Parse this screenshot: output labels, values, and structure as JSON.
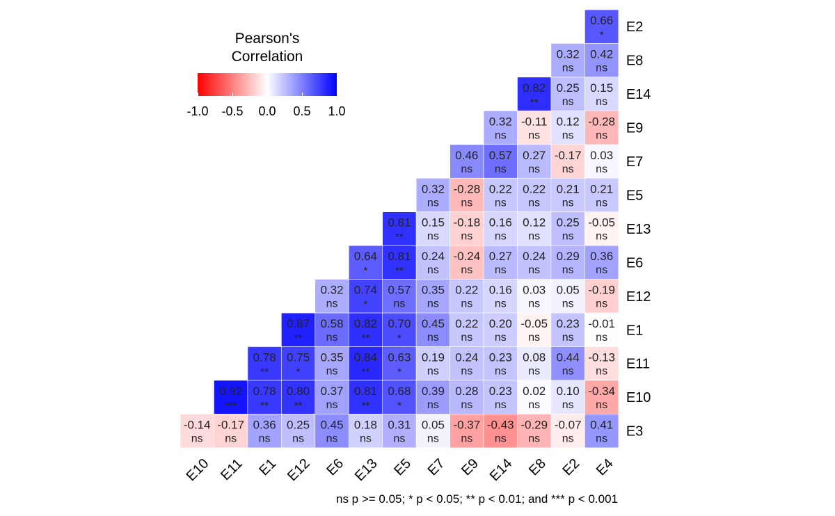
{
  "chart_data": {
    "type": "heatmap",
    "x_labels": [
      "E10",
      "E11",
      "E1",
      "E12",
      "E6",
      "E13",
      "E5",
      "E7",
      "E9",
      "E14",
      "E8",
      "E2",
      "E4"
    ],
    "y_labels": [
      "E2",
      "E8",
      "E14",
      "E9",
      "E7",
      "E5",
      "E13",
      "E6",
      "E12",
      "E1",
      "E11",
      "E10",
      "E3"
    ],
    "values": [
      [
        null,
        null,
        null,
        null,
        null,
        null,
        null,
        null,
        null,
        null,
        null,
        null,
        0.66
      ],
      [
        null,
        null,
        null,
        null,
        null,
        null,
        null,
        null,
        null,
        null,
        null,
        0.32,
        0.42
      ],
      [
        null,
        null,
        null,
        null,
        null,
        null,
        null,
        null,
        null,
        null,
        0.82,
        0.25,
        0.15
      ],
      [
        null,
        null,
        null,
        null,
        null,
        null,
        null,
        null,
        null,
        0.32,
        -0.11,
        0.12,
        -0.28
      ],
      [
        null,
        null,
        null,
        null,
        null,
        null,
        null,
        null,
        0.46,
        0.57,
        0.27,
        -0.17,
        0.03
      ],
      [
        null,
        null,
        null,
        null,
        null,
        null,
        null,
        0.32,
        -0.28,
        0.22,
        0.22,
        0.21,
        0.21
      ],
      [
        null,
        null,
        null,
        null,
        null,
        null,
        0.81,
        0.15,
        -0.18,
        0.16,
        0.12,
        0.25,
        -0.05
      ],
      [
        null,
        null,
        null,
        null,
        null,
        0.64,
        0.81,
        0.24,
        -0.24,
        0.27,
        0.24,
        0.29,
        0.36
      ],
      [
        null,
        null,
        null,
        null,
        0.32,
        0.74,
        0.57,
        0.35,
        0.22,
        0.16,
        0.03,
        0.05,
        -0.19
      ],
      [
        null,
        null,
        null,
        0.87,
        0.58,
        0.82,
        0.7,
        0.45,
        0.22,
        0.2,
        -0.05,
        0.23,
        -0.01
      ],
      [
        null,
        null,
        0.78,
        0.75,
        0.35,
        0.84,
        0.63,
        0.19,
        0.24,
        0.23,
        0.08,
        0.44,
        -0.13
      ],
      [
        null,
        0.92,
        0.78,
        0.8,
        0.37,
        0.81,
        0.68,
        0.39,
        0.28,
        0.23,
        0.02,
        0.1,
        -0.34
      ],
      [
        -0.14,
        -0.17,
        0.36,
        0.25,
        0.45,
        0.18,
        0.31,
        0.05,
        -0.37,
        -0.43,
        -0.29,
        -0.07,
        0.41
      ]
    ],
    "significance": [
      [
        null,
        null,
        null,
        null,
        null,
        null,
        null,
        null,
        null,
        null,
        null,
        null,
        "*"
      ],
      [
        null,
        null,
        null,
        null,
        null,
        null,
        null,
        null,
        null,
        null,
        null,
        "ns",
        "ns"
      ],
      [
        null,
        null,
        null,
        null,
        null,
        null,
        null,
        null,
        null,
        null,
        "**",
        "ns",
        "ns"
      ],
      [
        null,
        null,
        null,
        null,
        null,
        null,
        null,
        null,
        null,
        "ns",
        "ns",
        "ns",
        "ns"
      ],
      [
        null,
        null,
        null,
        null,
        null,
        null,
        null,
        null,
        "ns",
        "ns",
        "ns",
        "ns",
        "ns"
      ],
      [
        null,
        null,
        null,
        null,
        null,
        null,
        null,
        "ns",
        "ns",
        "ns",
        "ns",
        "ns",
        "ns"
      ],
      [
        null,
        null,
        null,
        null,
        null,
        null,
        "**",
        "ns",
        "ns",
        "ns",
        "ns",
        "ns",
        "ns"
      ],
      [
        null,
        null,
        null,
        null,
        null,
        "*",
        "**",
        "ns",
        "ns",
        "ns",
        "ns",
        "ns",
        "ns"
      ],
      [
        null,
        null,
        null,
        null,
        "ns",
        "*",
        "ns",
        "ns",
        "ns",
        "ns",
        "ns",
        "ns",
        "ns"
      ],
      [
        null,
        null,
        null,
        "**",
        "ns",
        "**",
        "*",
        "ns",
        "ns",
        "ns",
        "ns",
        "ns",
        "ns"
      ],
      [
        null,
        null,
        "**",
        "*",
        "ns",
        "**",
        "*",
        "ns",
        "ns",
        "ns",
        "ns",
        "ns",
        "ns"
      ],
      [
        null,
        "***",
        "**",
        "**",
        "ns",
        "**",
        "*",
        "ns",
        "ns",
        "ns",
        "ns",
        "ns",
        "ns"
      ],
      [
        "ns",
        "ns",
        "ns",
        "ns",
        "ns",
        "ns",
        "ns",
        "ns",
        "ns",
        "ns",
        "ns",
        "ns",
        "ns"
      ]
    ],
    "color_scale": {
      "low": "#ff0000",
      "mid": "#ffffff",
      "high": "#0000ff",
      "limits": [
        -1,
        1
      ]
    },
    "legend": {
      "title_line1": "Pearson's",
      "title_line2": "Correlation",
      "ticks": [
        "-1.0",
        "-0.5",
        "0.0",
        "0.5",
        "1.0"
      ],
      "tick_values": [
        -1,
        -0.5,
        0,
        0.5,
        1
      ],
      "position": "top-left"
    },
    "footnote": "ns p >= 0.05; * p < 0.05; ** p < 0.01; and *** p < 0.001"
  }
}
